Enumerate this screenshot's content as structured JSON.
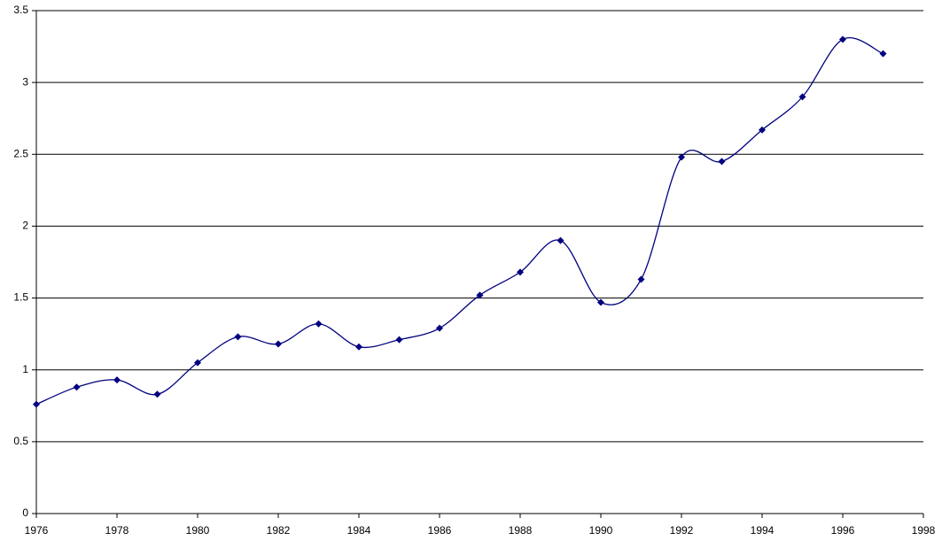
{
  "chart_data": {
    "type": "line",
    "x": [
      1976,
      1977,
      1978,
      1979,
      1980,
      1981,
      1982,
      1983,
      1984,
      1985,
      1986,
      1987,
      1988,
      1989,
      1990,
      1991,
      1992,
      1993,
      1994,
      1995,
      1996,
      1997
    ],
    "values": [
      0.76,
      0.88,
      0.93,
      0.83,
      1.05,
      1.23,
      1.18,
      1.32,
      1.16,
      1.21,
      1.29,
      1.52,
      1.68,
      1.9,
      1.47,
      1.63,
      2.48,
      2.45,
      2.67,
      2.9,
      3.3,
      3.2
    ],
    "color": "#000080",
    "xlim": [
      1976,
      1998
    ],
    "xticks": [
      1976,
      1978,
      1980,
      1982,
      1984,
      1986,
      1988,
      1990,
      1992,
      1994,
      1996,
      1998
    ],
    "ylim": [
      0,
      3.5
    ],
    "yticks": [
      0,
      0.5,
      1,
      1.5,
      2,
      2.5,
      3,
      3.5
    ],
    "grid": true,
    "smooth": true
  }
}
